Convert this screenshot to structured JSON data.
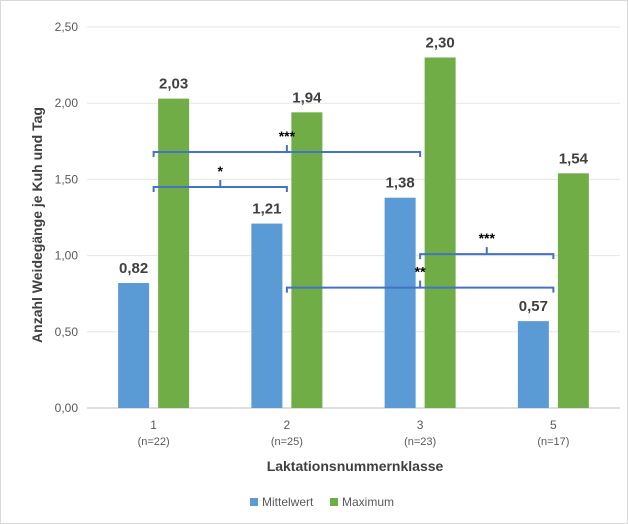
{
  "chart_data": {
    "type": "bar",
    "categories": [
      "1",
      "2",
      "3",
      "5"
    ],
    "category_n": [
      "(n=22)",
      "(n=25)",
      "(n=23)",
      "(n=17)"
    ],
    "series": [
      {
        "name": "Mittelwert",
        "color": "#5b9bd5",
        "values": [
          0.82,
          1.21,
          1.38,
          0.57
        ],
        "labels": [
          "0,82",
          "1,21",
          "1,38",
          "0,57"
        ]
      },
      {
        "name": "Maximum",
        "color": "#70ad47",
        "values": [
          2.03,
          1.94,
          2.3,
          1.54
        ],
        "labels": [
          "2,03",
          "1,94",
          "2,30",
          "1,54"
        ]
      }
    ],
    "xlabel": "Laktationsnummernklasse",
    "ylabel": "Anzahl Weidegänge je Kuh und Tag",
    "ylim": [
      0,
      2.5
    ],
    "yticks": [
      {
        "value": 0,
        "label": "0,00"
      },
      {
        "value": 0.5,
        "label": "0,50"
      },
      {
        "value": 1.0,
        "label": "1,00"
      },
      {
        "value": 1.5,
        "label": "1,50"
      },
      {
        "value": 2.0,
        "label": "2,00"
      },
      {
        "value": 2.5,
        "label": "2,50"
      }
    ],
    "grid": true,
    "legend_position": "bottom",
    "significance": [
      {
        "from_category": "1",
        "to_category": "3",
        "level": 1.68,
        "label": "***"
      },
      {
        "from_category": "1",
        "to_category": "2",
        "level": 1.45,
        "label": "*"
      },
      {
        "from_category": "3",
        "to_category": "5",
        "level": 1.01,
        "label": "***"
      },
      {
        "from_category": "2",
        "to_category": "5",
        "level": 0.79,
        "label": "**"
      }
    ],
    "bracket_color": "#4472c4"
  }
}
